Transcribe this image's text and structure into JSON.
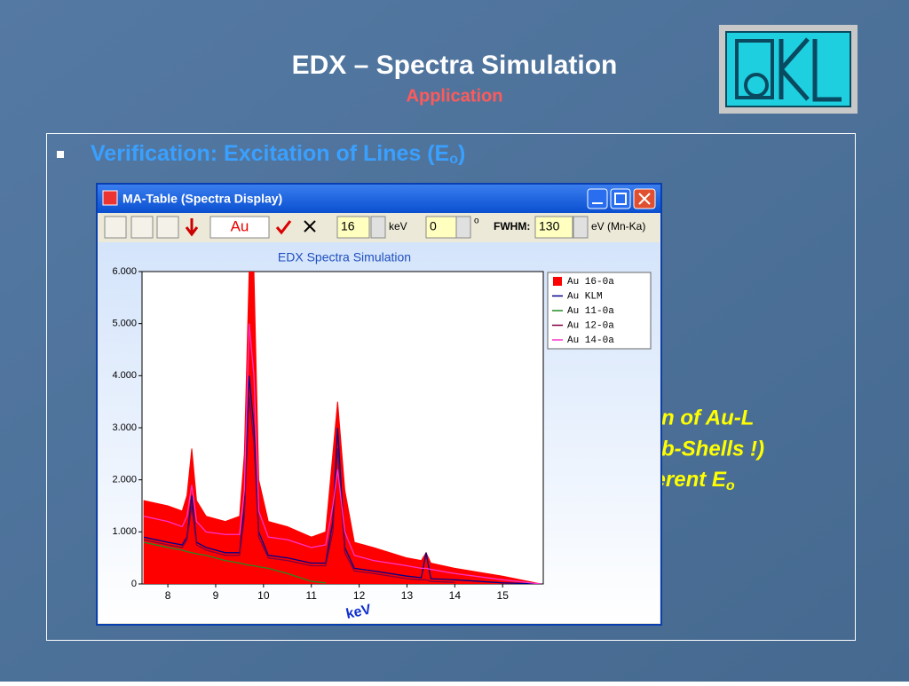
{
  "slide": {
    "title": "EDX – Spectra Simulation",
    "subtitle": "Application",
    "bullet": {
      "text": "Verification:  Excitation of Lines (E",
      "sub": "o",
      "end": ")"
    },
    "annotation": {
      "line1": "Excitation of Au-L",
      "line2": "lines (Sub-Shells !)",
      "line3": "with different E",
      "sub": "o"
    }
  },
  "window": {
    "title": "MA-Table (Spectra Display)",
    "toolbar": {
      "element": "Au",
      "energy": "16",
      "energy_unit": "keV",
      "angle": "0",
      "angle_unit": "o",
      "fwhm_label": "FWHM:",
      "fwhm": "130",
      "fwhm_unit": "eV (Mn-Ka)"
    }
  },
  "chart_data": {
    "type": "line",
    "title": "EDX Spectra Simulation",
    "x_label": "keV",
    "x": [
      7.5,
      8.0,
      8.3,
      8.4,
      8.5,
      8.6,
      8.8,
      9.2,
      9.5,
      9.6,
      9.7,
      9.8,
      9.9,
      10.1,
      10.5,
      11.0,
      11.3,
      11.45,
      11.55,
      11.7,
      11.9,
      12.3,
      13.0,
      13.3,
      13.4,
      13.5,
      14.0,
      15.0,
      15.8
    ],
    "series": [
      {
        "name": "Au 16-0a",
        "color": "#ff0000",
        "filled": true,
        "values": [
          1.6,
          1.5,
          1.4,
          1.7,
          2.6,
          1.6,
          1.3,
          1.2,
          1.3,
          2.5,
          6.0,
          6.0,
          2.0,
          1.2,
          1.1,
          0.9,
          1.0,
          2.5,
          3.5,
          1.8,
          0.8,
          0.7,
          0.5,
          0.45,
          0.6,
          0.4,
          0.3,
          0.15,
          0
        ]
      },
      {
        "name": "Au KLM",
        "color": "#00008b",
        "filled": false,
        "values": [
          0.9,
          0.8,
          0.75,
          0.9,
          1.7,
          0.8,
          0.7,
          0.6,
          0.6,
          1.5,
          4.0,
          3.0,
          1.0,
          0.55,
          0.5,
          0.4,
          0.4,
          1.2,
          3.0,
          0.7,
          0.3,
          0.25,
          0.15,
          0.12,
          0.6,
          0.1,
          0.08,
          0.02,
          0
        ]
      },
      {
        "name": "Au 11-0a",
        "color": "#228b22",
        "filled": false,
        "values": [
          0.8,
          0.7,
          0.65,
          0.62,
          0.6,
          0.58,
          0.55,
          0.45,
          0.4,
          0.38,
          0.36,
          0.35,
          0.33,
          0.3,
          0.2,
          0.05,
          0.02,
          null,
          null,
          null,
          null,
          null,
          null,
          null,
          null,
          null,
          null,
          null,
          null
        ]
      },
      {
        "name": "Au 12-0a",
        "color": "#800040",
        "filled": false,
        "values": [
          0.85,
          0.75,
          0.7,
          0.85,
          1.5,
          0.75,
          0.65,
          0.55,
          0.55,
          1.3,
          3.6,
          2.7,
          0.9,
          0.5,
          0.45,
          0.35,
          0.35,
          1.0,
          2.6,
          0.6,
          0.25,
          0.2,
          0.1,
          0.08,
          0.08,
          0.05,
          0.03,
          null,
          null
        ]
      },
      {
        "name": "Au 14-0a",
        "color": "#ff33cc",
        "filled": false,
        "values": [
          1.3,
          1.2,
          1.1,
          1.3,
          1.9,
          1.2,
          1.0,
          0.95,
          0.95,
          1.8,
          5.0,
          4.0,
          1.4,
          0.9,
          0.85,
          0.7,
          0.75,
          1.5,
          2.2,
          1.0,
          0.55,
          0.45,
          0.35,
          0.3,
          0.3,
          0.28,
          0.2,
          0.08,
          0
        ]
      }
    ],
    "xlim": [
      7.46,
      15.85
    ],
    "ylim": [
      0,
      6
    ],
    "xticks": [
      8,
      9,
      10,
      11,
      12,
      13,
      14,
      15
    ],
    "yticks": [
      0,
      {
        "value": 1,
        "label": "1.000"
      },
      {
        "value": 2,
        "label": "2.000"
      },
      {
        "value": 3,
        "label": "3.000"
      },
      {
        "value": 4,
        "label": "4.000"
      },
      {
        "value": 5,
        "label": "5.000"
      },
      {
        "value": 6,
        "label": "6.000"
      }
    ],
    "legend": "upper right"
  }
}
